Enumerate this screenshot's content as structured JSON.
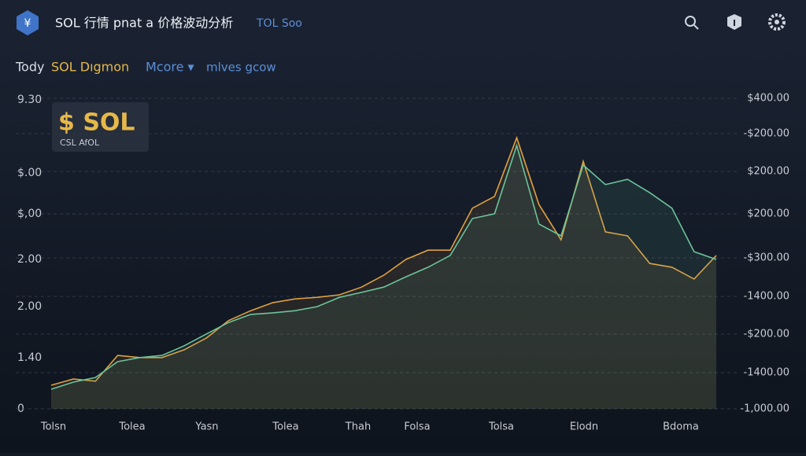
{
  "header": {
    "icon": "¥",
    "title": "SOL 行情 pnat a 价格波动分析",
    "tag": "TOL Soo"
  },
  "toolbar": {
    "label": "Tody",
    "symbol": "SOL Dıgmon",
    "menu": "Mcore ▾",
    "link": "mlves gсow"
  },
  "badge": {
    "title": "$ SOL",
    "subtitle": "CSL AfOL"
  },
  "chart_data": {
    "type": "line",
    "left_axis_labels": [
      "9.30",
      "$.00",
      "$,00",
      "2.00",
      "2.00",
      "1.40",
      "0"
    ],
    "right_axis_labels": [
      "$400.00",
      "-$200.00",
      "$200.00",
      "$200.00",
      "-$300.00",
      "-1400.00",
      "-$200.00",
      "-1400.00",
      "-1,000.00"
    ],
    "x_labels": [
      "Tolsn",
      "Tolea",
      "Yasn",
      "Tolea",
      "Thah",
      "Folsa",
      "Tolsa",
      "Elodn",
      "Bdoma"
    ],
    "x": [
      0,
      1,
      2,
      3,
      4,
      5,
      6,
      7,
      8,
      9,
      10,
      11,
      12,
      13,
      14,
      15,
      16,
      17,
      18,
      19,
      20,
      21,
      22,
      23,
      24,
      25,
      26,
      27,
      28,
      29,
      30
    ],
    "xlim": [
      0,
      30
    ],
    "ylim": [
      0,
      100
    ],
    "series": [
      {
        "color": "#e0a040",
        "values": [
          7.6,
          9.6,
          8.9,
          17.2,
          16.5,
          16.5,
          19,
          22.8,
          28.4,
          31.6,
          34.2,
          35.4,
          35.9,
          36.7,
          39.2,
          43,
          48.1,
          51.1,
          51.1,
          64.6,
          68.4,
          87.3,
          65.8,
          54.4,
          79.7,
          57,
          55.7,
          46.8,
          45.6,
          41.8,
          49.4
        ]
      },
      {
        "color": "#6cc49a",
        "values": [
          6.3,
          8.6,
          10.1,
          15.2,
          16.5,
          17.2,
          20.3,
          24.1,
          27.8,
          30.4,
          30.9,
          31.6,
          32.9,
          35.9,
          37.5,
          39.2,
          42.5,
          45.6,
          49.4,
          61.3,
          62.8,
          84.8,
          59.5,
          55.7,
          78.5,
          72.2,
          73.9,
          69.6,
          64.6,
          50.6,
          48.1
        ]
      }
    ]
  }
}
